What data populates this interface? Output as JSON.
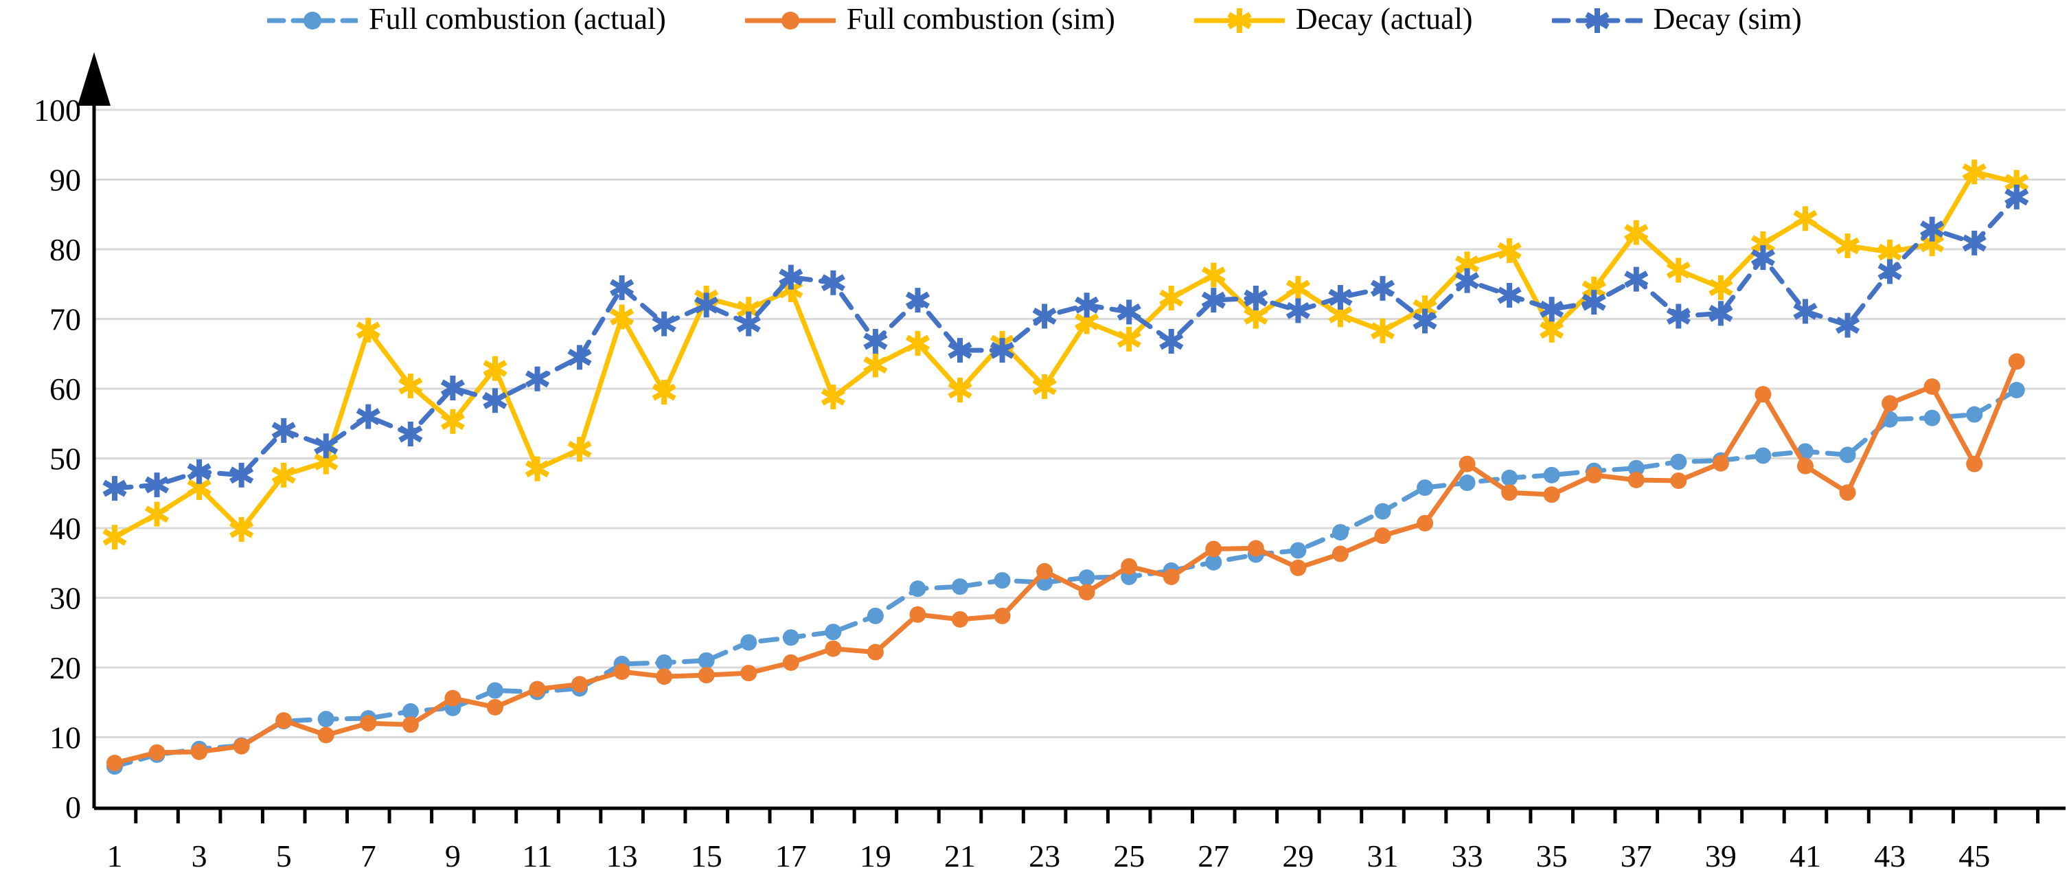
{
  "chart_data": {
    "type": "line",
    "title": "",
    "xlabel": "",
    "ylabel": "",
    "ylim": [
      0,
      100
    ],
    "ytick_step": 10,
    "ytick_labels": [
      "0",
      "10",
      "20",
      "30",
      "40",
      "50",
      "60",
      "70",
      "80",
      "90",
      "100"
    ],
    "xtick_labels": [
      "1",
      "3",
      "5",
      "7",
      "9",
      "11",
      "13",
      "15",
      "17",
      "19",
      "21",
      "23",
      "25",
      "27",
      "29",
      "31",
      "33",
      "35",
      "37",
      "39",
      "41",
      "43",
      "45"
    ],
    "x": [
      1,
      2,
      3,
      4,
      5,
      6,
      7,
      8,
      9,
      10,
      11,
      12,
      13,
      14,
      15,
      16,
      17,
      18,
      19,
      20,
      21,
      22,
      23,
      24,
      25,
      26,
      27,
      28,
      29,
      30,
      31,
      32,
      33,
      34,
      35,
      36,
      37,
      38,
      39,
      40,
      41,
      42,
      43,
      44,
      45,
      46
    ],
    "grid": "horizontal",
    "legend_position": "top",
    "colors": {
      "full_combustion_actual": "#5B9BD5",
      "full_combustion_sim": "#ED7D31",
      "decay_actual": "#FFC000",
      "decay_sim": "#4472C4",
      "gridline": "#D9D9D9",
      "axis": "#000000"
    },
    "series": [
      {
        "name": "Full combustion (actual)",
        "color": "#5B9BD5",
        "line_style": "dashed",
        "marker": "circle",
        "values": [
          5.8,
          7.5,
          8.3,
          8.8,
          12.3,
          12.6,
          12.7,
          13.7,
          14.2,
          16.7,
          16.5,
          17.0,
          20.5,
          20.7,
          21.0,
          23.6,
          24.3,
          25.1,
          27.4,
          31.3,
          31.6,
          32.5,
          32.2,
          32.9,
          33.0,
          33.9,
          35.1,
          36.2,
          36.8,
          39.4,
          42.4,
          45.8,
          46.5,
          47.2,
          47.6,
          48.2,
          48.6,
          49.5,
          49.7,
          50.4,
          51.0,
          50.5,
          55.6,
          55.8,
          56.3,
          59.8
        ]
      },
      {
        "name": "Full combustion (sim)",
        "color": "#ED7D31",
        "line_style": "solid",
        "marker": "circle",
        "values": [
          6.3,
          7.8,
          7.9,
          8.7,
          12.4,
          10.3,
          12.0,
          11.8,
          15.6,
          14.3,
          16.9,
          17.6,
          19.4,
          18.7,
          18.9,
          19.2,
          20.7,
          22.7,
          22.2,
          27.6,
          26.9,
          27.4,
          33.8,
          30.8,
          34.5,
          33.0,
          37.0,
          37.1,
          34.3,
          36.3,
          38.9,
          40.7,
          49.2,
          45.1,
          44.8,
          47.6,
          46.9,
          46.8,
          49.3,
          59.2,
          48.9,
          45.1,
          57.9,
          60.3,
          49.2,
          63.9
        ]
      },
      {
        "name": "Decay (actual)",
        "color": "#FFC000",
        "line_style": "solid",
        "marker": "asterisk",
        "values": [
          38.7,
          42.0,
          45.8,
          39.8,
          47.6,
          49.5,
          68.4,
          60.4,
          55.3,
          62.9,
          48.5,
          51.3,
          70.3,
          59.5,
          73.0,
          71.4,
          74.2,
          58.8,
          63.4,
          66.5,
          59.8,
          66.5,
          60.3,
          69.6,
          67.1,
          73.0,
          76.3,
          70.4,
          74.4,
          70.6,
          68.3,
          71.6,
          77.9,
          79.8,
          68.4,
          74.3,
          82.4,
          77.0,
          74.5,
          80.8,
          84.4,
          80.5,
          79.6,
          80.8,
          91.1,
          89.6
        ]
      },
      {
        "name": "Decay (sim)",
        "color": "#4472C4",
        "line_style": "dashed",
        "marker": "asterisk",
        "values": [
          45.7,
          46.2,
          48.1,
          47.6,
          54.0,
          51.8,
          56.0,
          53.5,
          60.1,
          58.3,
          61.4,
          64.5,
          74.5,
          69.3,
          72.0,
          69.3,
          76.0,
          75.2,
          66.8,
          72.7,
          65.5,
          65.5,
          70.4,
          72.0,
          71.0,
          66.8,
          72.7,
          73.0,
          71.2,
          73.1,
          74.4,
          69.7,
          75.5,
          73.4,
          71.4,
          72.4,
          75.7,
          70.4,
          70.8,
          78.8,
          71.1,
          69.1,
          76.8,
          82.9,
          80.9,
          87.5
        ]
      }
    ]
  }
}
